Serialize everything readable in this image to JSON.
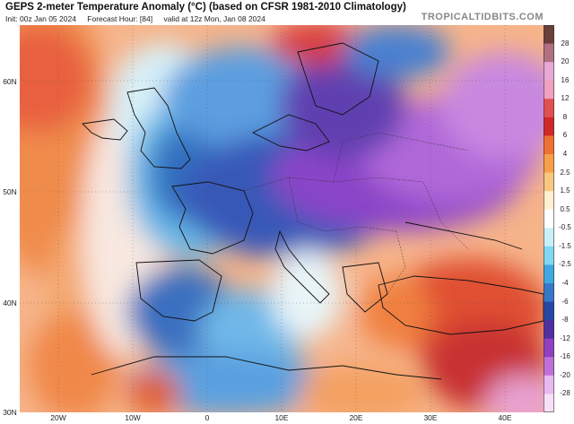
{
  "header": {
    "title": "GEPS 2-meter Temperature Anomaly (°C) (based on CFSR 1981-2010 Climatology)",
    "init": "Init: 00z Jan 05 2024",
    "forecast_hour": "Forecast Hour: [84]",
    "valid": "valid at 12z Mon, Jan 08 2024",
    "brand": "TROPICALTIDBITS.COM"
  },
  "lat_labels": [
    "60N",
    "50N",
    "40N",
    "30N"
  ],
  "lon_labels": [
    "20W",
    "10W",
    "0",
    "10E",
    "20E",
    "30E",
    "40E"
  ],
  "colorbar": {
    "ticks": [
      "28",
      "20",
      "16",
      "12",
      "8",
      "6",
      "4",
      "2.5",
      "1.5",
      "0.5",
      "-0.5",
      "-1.5",
      "-2.5",
      "-4",
      "-6",
      "-8",
      "-12",
      "-16",
      "-20",
      "-28"
    ],
    "colors": [
      "#6b3f3a",
      "#b07080",
      "#e8a8d8",
      "#f0a0c0",
      "#e05050",
      "#d02828",
      "#f07030",
      "#f8a048",
      "#f8c880",
      "#fff0d0",
      "#ffffff",
      "#c8f0f8",
      "#80d8f0",
      "#40a8e0",
      "#3878c8",
      "#2848a8",
      "#5030a0",
      "#9040c0",
      "#c070d8",
      "#e8b8f0",
      "#f8e0f8"
    ]
  }
}
